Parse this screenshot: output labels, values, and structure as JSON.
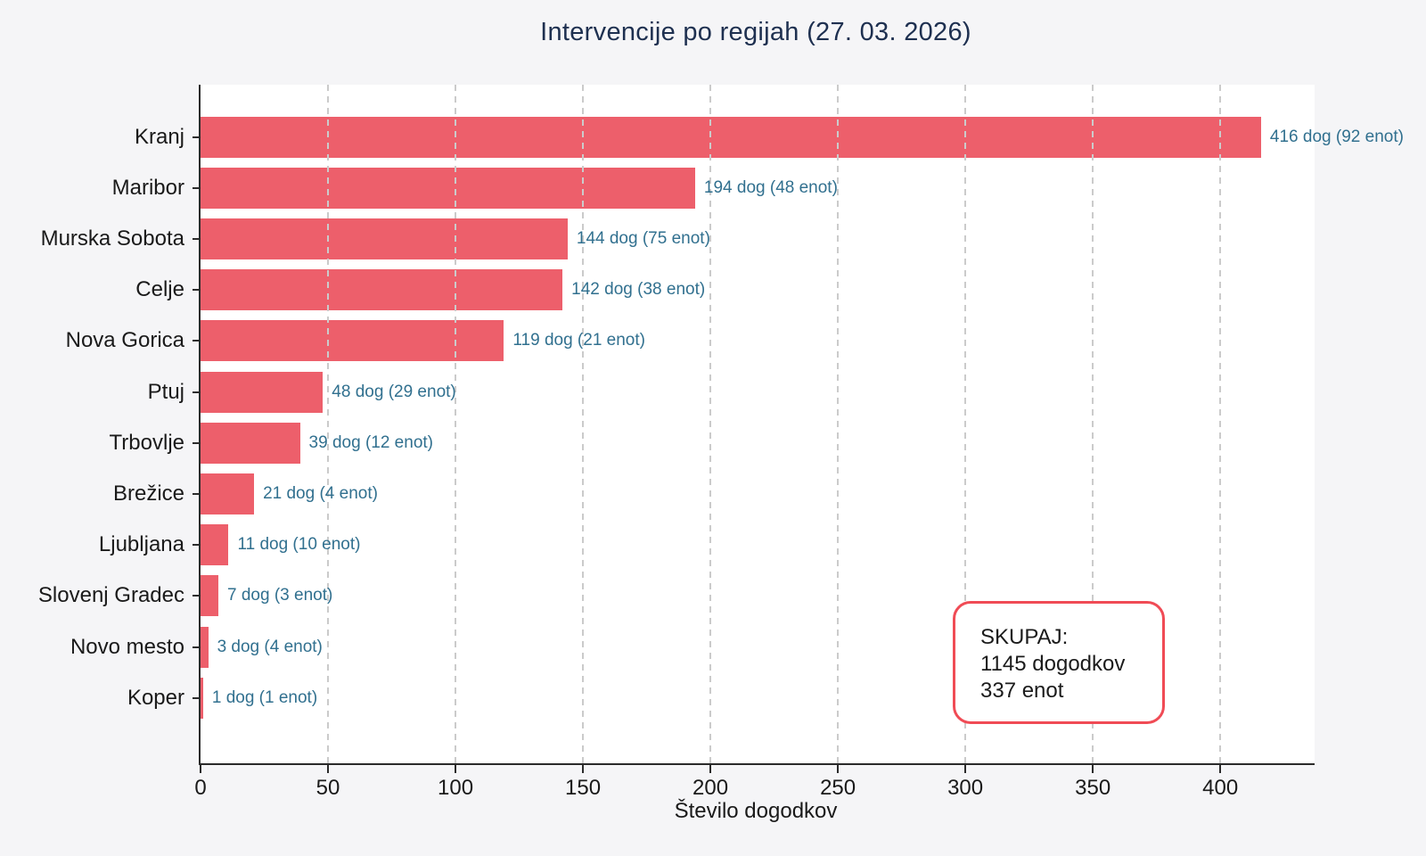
{
  "title": "Intervencije po regijah (27. 03. 2026)",
  "chart_data": {
    "type": "bar",
    "orientation": "horizontal",
    "title": "Intervencije po regijah (27. 03. 2026)",
    "xlabel": "Število dogodkov",
    "ylabel": "",
    "xlim": [
      0,
      437
    ],
    "xticks": [
      0,
      50,
      100,
      150,
      200,
      250,
      300,
      350,
      400
    ],
    "grid": "vertical-dashed",
    "legend": "none",
    "categories": [
      "Kranj",
      "Maribor",
      "Murska Sobota",
      "Celje",
      "Nova Gorica",
      "Ptuj",
      "Trbovlje",
      "Brežice",
      "Ljubljana",
      "Slovenj Gradec",
      "Novo mesto",
      "Koper"
    ],
    "series": [
      {
        "name": "dogodki",
        "values": [
          416,
          194,
          144,
          142,
          119,
          48,
          39,
          21,
          11,
          7,
          3,
          1
        ]
      },
      {
        "name": "enote",
        "values": [
          92,
          48,
          75,
          38,
          21,
          29,
          12,
          4,
          10,
          3,
          4,
          1
        ]
      }
    ],
    "bar_labels": [
      "416 dog (92 enot)",
      "194 dog (48 enot)",
      "144 dog (75 enot)",
      "142 dog (38 enot)",
      "119 dog (21 enot)",
      "48 dog (29 enot)",
      "39 dog (12 enot)",
      "21 dog (4 enot)",
      "11 dog (10 enot)",
      "7 dog (3 enot)",
      "3 dog (4 enot)",
      "1 dog (1 enot)"
    ],
    "colors": {
      "bar": "#ed5f6b",
      "bar_label": "#31708f",
      "title": "#1e3050",
      "axis_text": "#1a1a1a",
      "grid": "#cbcbcb",
      "figure_bg": "#f5f5f7",
      "plot_bg": "#ffffff",
      "annotation_border": "#f04b55"
    }
  },
  "annotation": {
    "line1": "SKUPAJ:",
    "line2": "1145 dogodkov",
    "line3": "337 enot"
  }
}
